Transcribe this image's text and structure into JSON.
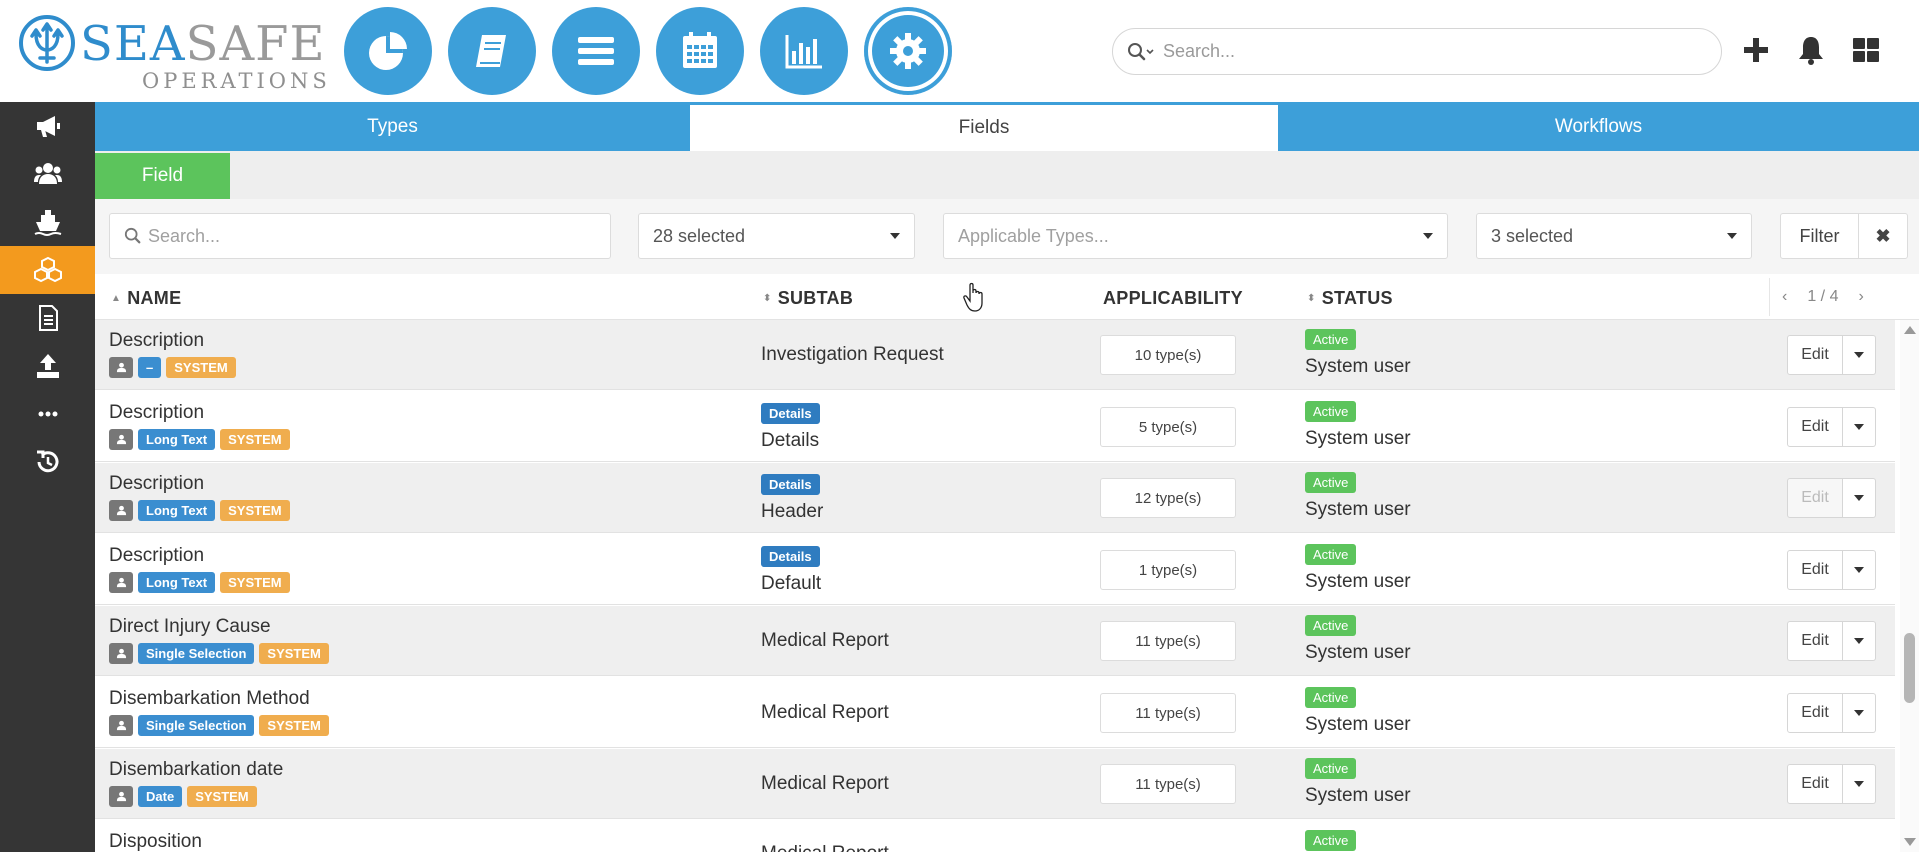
{
  "header": {
    "logo_sea": "SEA",
    "logo_safe": "SAFE",
    "logo_sub": "OPERATIONS",
    "search_placeholder": "Search..."
  },
  "nav_circles": [
    {
      "name": "dashboard-nav",
      "icon": "pie-chart-icon"
    },
    {
      "name": "logbook-nav",
      "icon": "book-icon"
    },
    {
      "name": "list-nav",
      "icon": "list-icon"
    },
    {
      "name": "calendar-nav",
      "icon": "calendar-icon"
    },
    {
      "name": "reports-nav",
      "icon": "bar-chart-icon"
    },
    {
      "name": "settings-nav",
      "icon": "gear-icon",
      "active": true
    }
  ],
  "sidebar": [
    {
      "icon": "megaphone-icon"
    },
    {
      "icon": "users-icon"
    },
    {
      "icon": "ship-icon"
    },
    {
      "icon": "cubes-icon",
      "active": true
    },
    {
      "icon": "document-icon"
    },
    {
      "icon": "upload-icon"
    },
    {
      "icon": "more-icon"
    },
    {
      "icon": "history-icon"
    }
  ],
  "tabs": {
    "types": "Types",
    "fields": "Fields",
    "workflows": "Workflows"
  },
  "subtab": "Field",
  "filters": {
    "search_placeholder": "Search...",
    "subtab_select": "28 selected",
    "applicable_types_placeholder": "Applicable Types...",
    "status_select": "3 selected",
    "filter_button": "Filter",
    "clear_button": "✖"
  },
  "table": {
    "columns": {
      "name": "NAME",
      "subtab": "SUBTAB",
      "applicability": "APPLICABILITY",
      "status": "STATUS"
    },
    "pager": {
      "prev": "‹",
      "page": "1 / 4",
      "next": "›"
    },
    "rows": [
      {
        "name": "Description",
        "type": "–",
        "system": "SYSTEM",
        "subtab_badge": "",
        "subtab": "Investigation Request",
        "applicability": "10 type(s)",
        "status": "Active",
        "status_user": "System user",
        "edit": "Edit",
        "edit_disabled": false
      },
      {
        "name": "Description",
        "type": "Long Text",
        "system": "SYSTEM",
        "subtab_badge": "Details",
        "subtab": "Details",
        "applicability": "5 type(s)",
        "status": "Active",
        "status_user": "System user",
        "edit": "Edit",
        "edit_disabled": false
      },
      {
        "name": "Description",
        "type": "Long Text",
        "system": "SYSTEM",
        "subtab_badge": "Details",
        "subtab": "Header",
        "applicability": "12 type(s)",
        "status": "Active",
        "status_user": "System user",
        "edit": "Edit",
        "edit_disabled": true
      },
      {
        "name": "Description",
        "type": "Long Text",
        "system": "SYSTEM",
        "subtab_badge": "Details",
        "subtab": "Default",
        "applicability": "1 type(s)",
        "status": "Active",
        "status_user": "System user",
        "edit": "Edit",
        "edit_disabled": false
      },
      {
        "name": "Direct Injury Cause",
        "type": "Single Selection",
        "system": "SYSTEM",
        "subtab_badge": "",
        "subtab": "Medical Report",
        "applicability": "11 type(s)",
        "status": "Active",
        "status_user": "System user",
        "edit": "Edit",
        "edit_disabled": false
      },
      {
        "name": "Disembarkation Method",
        "type": "Single Selection",
        "system": "SYSTEM",
        "subtab_badge": "",
        "subtab": "Medical Report",
        "applicability": "11 type(s)",
        "status": "Active",
        "status_user": "System user",
        "edit": "Edit",
        "edit_disabled": false
      },
      {
        "name": "Disembarkation date",
        "type": "Date",
        "system": "SYSTEM",
        "subtab_badge": "",
        "subtab": "Medical Report",
        "applicability": "11 type(s)",
        "status": "Active",
        "status_user": "System user",
        "edit": "Edit",
        "edit_disabled": false
      },
      {
        "name": "Disposition",
        "type": "",
        "system": "",
        "subtab_badge": "",
        "subtab": "Medical Report",
        "applicability": "",
        "status": "Active",
        "status_user": "",
        "edit": "",
        "edit_disabled": false
      }
    ]
  },
  "colors": {
    "brand_blue": "#3d9fd9",
    "sidebar_dark": "#353535",
    "sidebar_active": "#f39a1e",
    "green": "#5cc45c",
    "system_orange": "#f0ad4e"
  }
}
